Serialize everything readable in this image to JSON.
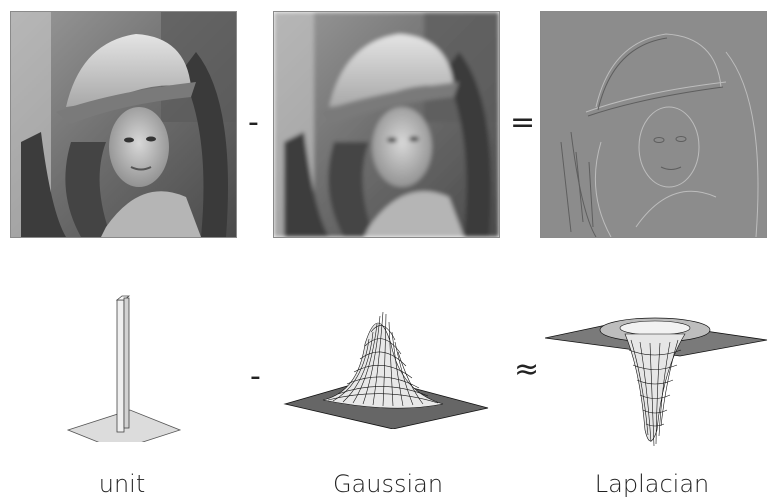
{
  "operators": {
    "top_minus": "-",
    "top_equals": "=",
    "bottom_minus": "-",
    "bottom_approx": "≈"
  },
  "captions": {
    "unit": "unit",
    "gaussian": "Gaussian",
    "laplacian": "Laplacian"
  },
  "colors": {
    "photo_frame": "#8a8a8a",
    "laplacian_gray": "#8c8c8c",
    "mesh": "#111111"
  }
}
